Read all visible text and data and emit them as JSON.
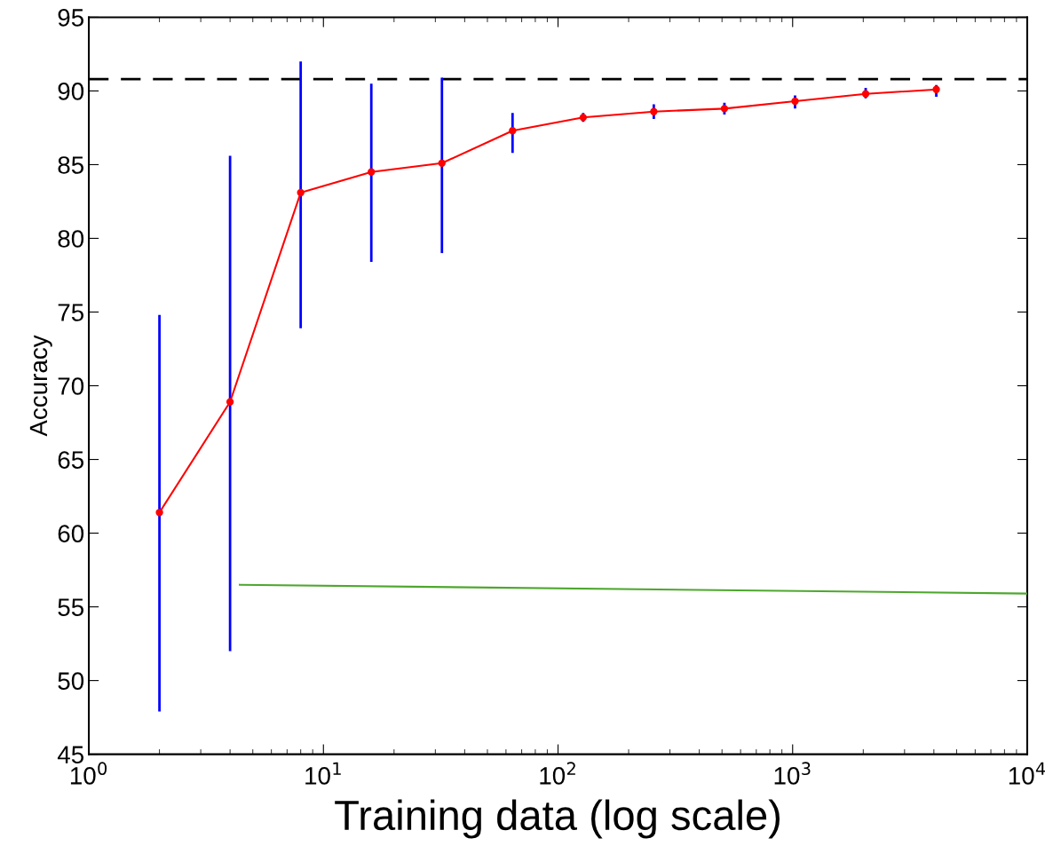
{
  "chart_data": {
    "type": "line",
    "xlabel": "Training data (log scale)",
    "ylabel": "Accuracy",
    "log": "x",
    "grid": false,
    "marker": "circle",
    "line_style": "solid",
    "xlim": [
      1,
      10000
    ],
    "xticks": [
      {
        "value": 1,
        "label": "10$^{0}$"
      },
      {
        "value": 10,
        "label": "10$^{1}$"
      },
      {
        "value": 100,
        "label": "10$^{2}$"
      },
      {
        "value": 1000,
        "label": "10$^{3}$"
      },
      {
        "value": 10000,
        "label": "10$^{4}$"
      }
    ],
    "ylim": [
      45,
      95
    ],
    "yticks": [
      45,
      50,
      55,
      60,
      65,
      70,
      75,
      80,
      85,
      90,
      95
    ],
    "series": [
      {
        "color": "#ff0000",
        "x": [
          2,
          4,
          8,
          16,
          32,
          64,
          128,
          256,
          512,
          1024,
          2048,
          4096
        ],
        "values": [
          61.4,
          68.9,
          83.1,
          84.5,
          85.1,
          87.3,
          88.2,
          88.6,
          88.8,
          89.3,
          89.8,
          90.1
        ],
        "errors": [
          [
            47.9,
            74.8
          ],
          [
            52.0,
            85.6
          ],
          [
            73.9,
            92.0
          ],
          [
            78.4,
            90.5
          ],
          [
            79.0,
            90.9
          ],
          [
            85.8,
            88.5
          ],
          [
            87.9,
            88.5
          ],
          [
            88.1,
            89.1
          ],
          [
            88.4,
            89.2
          ],
          [
            88.8,
            89.7
          ],
          [
            89.5,
            90.2
          ],
          [
            89.6,
            90.4
          ]
        ]
      },
      {
        "color": "#4ea72e",
        "marker": "none",
        "x": [
          4.4,
          10000
        ],
        "values": [
          56.5,
          55.9
        ]
      }
    ],
    "ref_lines": [
      {
        "axis": "y",
        "value": 90.8,
        "color": "#000000",
        "line_style": "dashed"
      }
    ]
  }
}
